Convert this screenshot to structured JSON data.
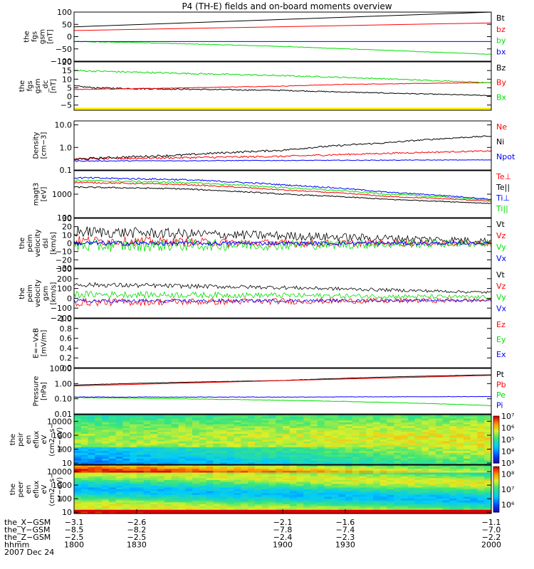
{
  "title": "P4 (TH-E) fields and on-board moments overview",
  "chart_data": [
    {
      "type": "line",
      "ylabel": [
        "the",
        "fgs",
        "gsm",
        "[nT]"
      ],
      "ylim": [
        -100,
        100
      ],
      "yticks": [
        {
          "v": 100,
          "label": "100"
        },
        {
          "v": 50,
          "label": "50"
        },
        {
          "v": 0,
          "label": "0"
        },
        {
          "v": -50,
          "label": "−50"
        },
        {
          "v": -100,
          "label": "−100"
        }
      ],
      "series": [
        {
          "name": "Bt",
          "color": "#000000",
          "x": [
            1800,
            2000
          ],
          "y": [
            40,
            100
          ],
          "noise": 0
        },
        {
          "name": "bz",
          "color": "#ff0000",
          "x": [
            1800,
            2000
          ],
          "y": [
            25,
            56
          ],
          "noise": 0
        },
        {
          "name": "by",
          "color": "#00dd00",
          "x": [
            1800,
            1830,
            1900,
            2000
          ],
          "y": [
            -20,
            -24,
            -40,
            -72
          ],
          "noise": 1.5
        },
        {
          "name": "bx",
          "color": "#0000ff",
          "x": [
            1800,
            2000
          ],
          "y": [
            -20,
            -20
          ],
          "noise": 0
        }
      ]
    },
    {
      "type": "line",
      "ylabel": [
        "the",
        "fgs",
        "gsm",
        "_dc",
        "[nT]"
      ],
      "ylim": [
        -8,
        20
      ],
      "yticks": [
        {
          "v": 20,
          "label": "20"
        },
        {
          "v": 15,
          "label": "15"
        },
        {
          "v": 10,
          "label": "10"
        },
        {
          "v": 5,
          "label": "5"
        },
        {
          "v": 0,
          "label": "0"
        },
        {
          "v": -5,
          "label": "−5"
        }
      ],
      "series": [
        {
          "name": "Bz",
          "color": "#000000",
          "x": [
            1800,
            1810,
            1830,
            1900,
            1930,
            2000
          ],
          "y": [
            6,
            5,
            4.5,
            3.5,
            2.5,
            0.5
          ],
          "noise": 0.4
        },
        {
          "name": "By",
          "color": "#ff0000",
          "x": [
            1800,
            1830,
            1900,
            1930,
            2000
          ],
          "y": [
            4,
            4.5,
            6,
            7,
            8
          ],
          "noise": 0.2
        },
        {
          "name": "Bx",
          "color": "#00dd00",
          "x": [
            1800,
            1830,
            1900,
            1930,
            2000
          ],
          "y": [
            15,
            14,
            12,
            11,
            8
          ],
          "noise": 0.5
        }
      ],
      "band": {
        "color": "#ffee00",
        "ylim": [
          -8,
          -6.5
        ]
      }
    },
    {
      "type": "line",
      "scale": "log",
      "ylabel": [
        "Density",
        "[cm−3]"
      ],
      "ylim": [
        0.1,
        15
      ],
      "yticks": [
        {
          "v": 10,
          "label": "10.0"
        },
        {
          "v": 1,
          "label": "1.0"
        },
        {
          "v": 0.1,
          "label": "0.1"
        }
      ],
      "series": [
        {
          "name": "Ne",
          "color": "#ff0000",
          "x": [
            1800,
            1900,
            2000
          ],
          "y": [
            0.3,
            0.4,
            0.7
          ],
          "noise": 0.05
        },
        {
          "name": "Ni",
          "color": "#000000",
          "x": [
            1800,
            1850,
            1900,
            1950,
            2000
          ],
          "y": [
            0.3,
            0.45,
            0.75,
            1.6,
            3.2
          ],
          "noise": 0.05
        },
        {
          "name": "Npot",
          "color": "#0000ff",
          "x": [
            1800,
            2000
          ],
          "y": [
            0.25,
            0.28
          ],
          "noise": 0.02
        }
      ]
    },
    {
      "type": "line",
      "scale": "log",
      "ylabel": [
        "magt3",
        "[eV]"
      ],
      "ylim": [
        100,
        10000
      ],
      "yticks": [
        {
          "v": 1000,
          "label": "1000"
        },
        {
          "v": 100,
          "label": "100"
        }
      ],
      "series": [
        {
          "name": "Te⊥",
          "color": "#ff0000",
          "x": [
            1800,
            1850,
            1900,
            1950,
            2000
          ],
          "y": [
            3200,
            2600,
            1500,
            800,
            500
          ],
          "noise": 0.03
        },
        {
          "name": "Te||",
          "color": "#000000",
          "x": [
            1800,
            1850,
            1900,
            1950,
            2000
          ],
          "y": [
            2000,
            1700,
            1000,
            600,
            400
          ],
          "noise": 0.03
        },
        {
          "name": "Ti⊥",
          "color": "#0000ff",
          "x": [
            1800,
            1850,
            1900,
            1950,
            2000
          ],
          "y": [
            5000,
            4200,
            2500,
            1200,
            600
          ],
          "noise": 0.04
        },
        {
          "name": "Ti||",
          "color": "#00dd00",
          "x": [
            1800,
            1850,
            1900,
            1950,
            2000
          ],
          "y": [
            3800,
            3200,
            1900,
            1000,
            550
          ],
          "noise": 0.04
        }
      ]
    },
    {
      "type": "line",
      "ylabel": [
        "the",
        "peim",
        "velocity",
        "dsl",
        "[km/s]"
      ],
      "ylim": [
        -30,
        30
      ],
      "yticks": [
        {
          "v": 30,
          "label": "30"
        },
        {
          "v": 20,
          "label": "20"
        },
        {
          "v": 10,
          "label": "10"
        },
        {
          "v": 0,
          "label": "0"
        },
        {
          "v": -10,
          "label": "−10"
        },
        {
          "v": -20,
          "label": "−20"
        },
        {
          "v": -30,
          "label": "−30"
        }
      ],
      "series": [
        {
          "name": "Vt",
          "color": "#000000",
          "x": [
            1800,
            1900,
            2000
          ],
          "y": [
            14,
            9,
            3
          ],
          "noise": 7
        },
        {
          "name": "Vz",
          "color": "#ff0000",
          "x": [
            1800,
            1900,
            2000
          ],
          "y": [
            3,
            0,
            0
          ],
          "noise": 6
        },
        {
          "name": "Vy",
          "color": "#00dd00",
          "x": [
            1800,
            1900,
            2000
          ],
          "y": [
            -3,
            -2,
            0
          ],
          "noise": 8
        },
        {
          "name": "Vx",
          "color": "#0000ff",
          "x": [
            1800,
            2000
          ],
          "y": [
            0,
            0
          ],
          "noise": 3
        }
      ]
    },
    {
      "type": "line",
      "ylabel": [
        "the",
        "peim",
        "velocity",
        "gsm",
        "[km/s]"
      ],
      "ylim": [
        -200,
        300
      ],
      "yticks": [
        {
          "v": 300,
          "label": "300"
        },
        {
          "v": 200,
          "label": "200"
        },
        {
          "v": 100,
          "label": "100"
        },
        {
          "v": 0,
          "label": "0"
        },
        {
          "v": -100,
          "label": "−100"
        },
        {
          "v": -200,
          "label": "−200"
        }
      ],
      "series": [
        {
          "name": "Vt",
          "color": "#000000",
          "x": [
            1800,
            1900,
            2000
          ],
          "y": [
            140,
            110,
            60
          ],
          "noise": 25
        },
        {
          "name": "Vz",
          "color": "#ff0000",
          "x": [
            1800,
            1900,
            2000
          ],
          "y": [
            -40,
            -30,
            -20
          ],
          "noise": 40
        },
        {
          "name": "Vy",
          "color": "#00dd00",
          "x": [
            1800,
            1900,
            2000
          ],
          "y": [
            40,
            30,
            10
          ],
          "noise": 35
        },
        {
          "name": "Vx",
          "color": "#0000ff",
          "x": [
            1800,
            2000
          ],
          "y": [
            -30,
            -20
          ],
          "noise": 20
        }
      ]
    },
    {
      "type": "line",
      "ylabel": [
        "E=−VxB",
        "[mV/m]"
      ],
      "ylim": [
        0,
        1
      ],
      "yticks": [
        {
          "v": 1,
          "label": "1.0"
        },
        {
          "v": 0.8,
          "label": "0.8"
        },
        {
          "v": 0.6,
          "label": "0.6"
        },
        {
          "v": 0.4,
          "label": "0.4"
        },
        {
          "v": 0.2,
          "label": "0.2"
        },
        {
          "v": 0,
          "label": "0.0"
        }
      ],
      "series": [
        {
          "name": "Ez",
          "color": "#ff0000",
          "x": [],
          "y": [],
          "noise": 0
        },
        {
          "name": "Ey",
          "color": "#00dd00",
          "x": [],
          "y": [],
          "noise": 0
        },
        {
          "name": "Ex",
          "color": "#0000ff",
          "x": [],
          "y": [],
          "noise": 0
        }
      ]
    },
    {
      "type": "line",
      "scale": "log",
      "ylabel": [
        "Pressure",
        "[nPa]"
      ],
      "ylim": [
        0.01,
        10
      ],
      "yticks": [
        {
          "v": 10,
          "label": "10.00"
        },
        {
          "v": 1,
          "label": "1.00"
        },
        {
          "v": 0.1,
          "label": "0.10"
        },
        {
          "v": 0.01,
          "label": "0.01"
        }
      ],
      "series": [
        {
          "name": "Pt",
          "color": "#000000",
          "x": [
            1800,
            1900,
            2000
          ],
          "y": [
            0.8,
            1.6,
            3.8
          ],
          "noise": 0.01
        },
        {
          "name": "Pb",
          "color": "#ff0000",
          "x": [
            1800,
            1900,
            2000
          ],
          "y": [
            0.7,
            1.5,
            3.5
          ],
          "noise": 0
        },
        {
          "name": "Pe",
          "color": "#00dd00",
          "x": [
            1800,
            1900,
            2000
          ],
          "y": [
            0.12,
            0.08,
            0.035
          ],
          "noise": 0.02
        },
        {
          "name": "Pi",
          "color": "#0000ff",
          "x": [
            1800,
            1900,
            2000
          ],
          "y": [
            0.13,
            0.13,
            0.14
          ],
          "noise": 0.02
        }
      ]
    },
    {
      "type": "heatmap",
      "scale": "log",
      "ylabel": [
        "the",
        "peir",
        "en",
        "eflux",
        "eV",
        "(cm2−s−",
        "sr−eV)"
      ],
      "ylim": [
        8,
        30000
      ],
      "yticks": [
        {
          "v": 10000,
          "label": "10000"
        },
        {
          "v": 1000,
          "label": "1000"
        },
        {
          "v": 100,
          "label": "100"
        },
        {
          "v": 10,
          "label": "10"
        }
      ],
      "colorbar": {
        "min_exp": 3,
        "max_exp": 7,
        "ticks": [
          {
            "e": 7,
            "label": "10⁷"
          },
          {
            "e": 6,
            "label": "10⁶"
          },
          {
            "e": 5,
            "label": "10⁵"
          },
          {
            "e": 4,
            "label": "10⁴"
          },
          {
            "e": 3,
            "label": "10³"
          }
        ]
      }
    },
    {
      "type": "heatmap",
      "scale": "log",
      "ylabel": [
        "the",
        "peer",
        "en",
        "eflux",
        "eV",
        "(cm2−s−",
        "sr−eV)"
      ],
      "ylim": [
        8,
        30000
      ],
      "yticks": [
        {
          "v": 10000,
          "label": "10000"
        },
        {
          "v": 1000,
          "label": "1000"
        },
        {
          "v": 100,
          "label": "100"
        },
        {
          "v": 10,
          "label": "10"
        }
      ],
      "colorbar": {
        "min_exp": 5.5,
        "max_exp": 8.5,
        "ticks": [
          {
            "e": 8,
            "label": "10⁸"
          },
          {
            "e": 7,
            "label": "10⁷"
          },
          {
            "e": 6,
            "label": "10⁶"
          }
        ]
      }
    }
  ],
  "xaxis": {
    "xlim": [
      1800,
      2000
    ],
    "ticks": [
      1800,
      1830,
      1900,
      1930,
      2000
    ],
    "rows": [
      {
        "label": "the_X−GSM",
        "values": [
          "−3.1",
          "−2.6",
          "−2.1",
          "−1.6",
          "−1.1"
        ]
      },
      {
        "label": "the_Y−GSM",
        "values": [
          "−8.5",
          "−8.2",
          "−7.8",
          "−7.4",
          "−7.0"
        ]
      },
      {
        "label": "the_Z−GSM",
        "values": [
          "−2.5",
          "−2.5",
          "−2.4",
          "−2.3",
          "−2.2"
        ]
      },
      {
        "label": "hhmm",
        "values": [
          "1800",
          "1830",
          "1900",
          "1930",
          "2000"
        ]
      }
    ],
    "date": "2007 Dec 24"
  }
}
